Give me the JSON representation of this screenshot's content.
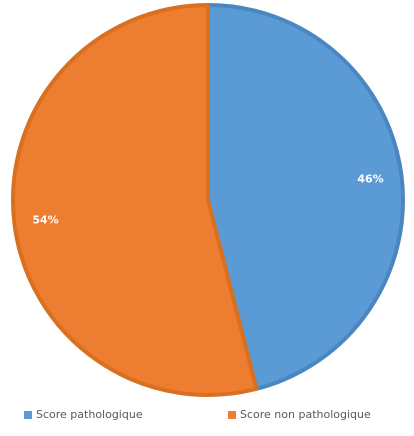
{
  "chart_data": {
    "type": "pie",
    "categories": [
      "Score pathologique",
      "Score non pathologique"
    ],
    "values": [
      46,
      54
    ],
    "data_labels": [
      "46%",
      "54%"
    ],
    "colors": [
      "#5B9BD5",
      "#ED7D31"
    ],
    "border_colors": [
      "#4A86C0",
      "#D9701F"
    ],
    "legend_position": "bottom",
    "title": ""
  }
}
